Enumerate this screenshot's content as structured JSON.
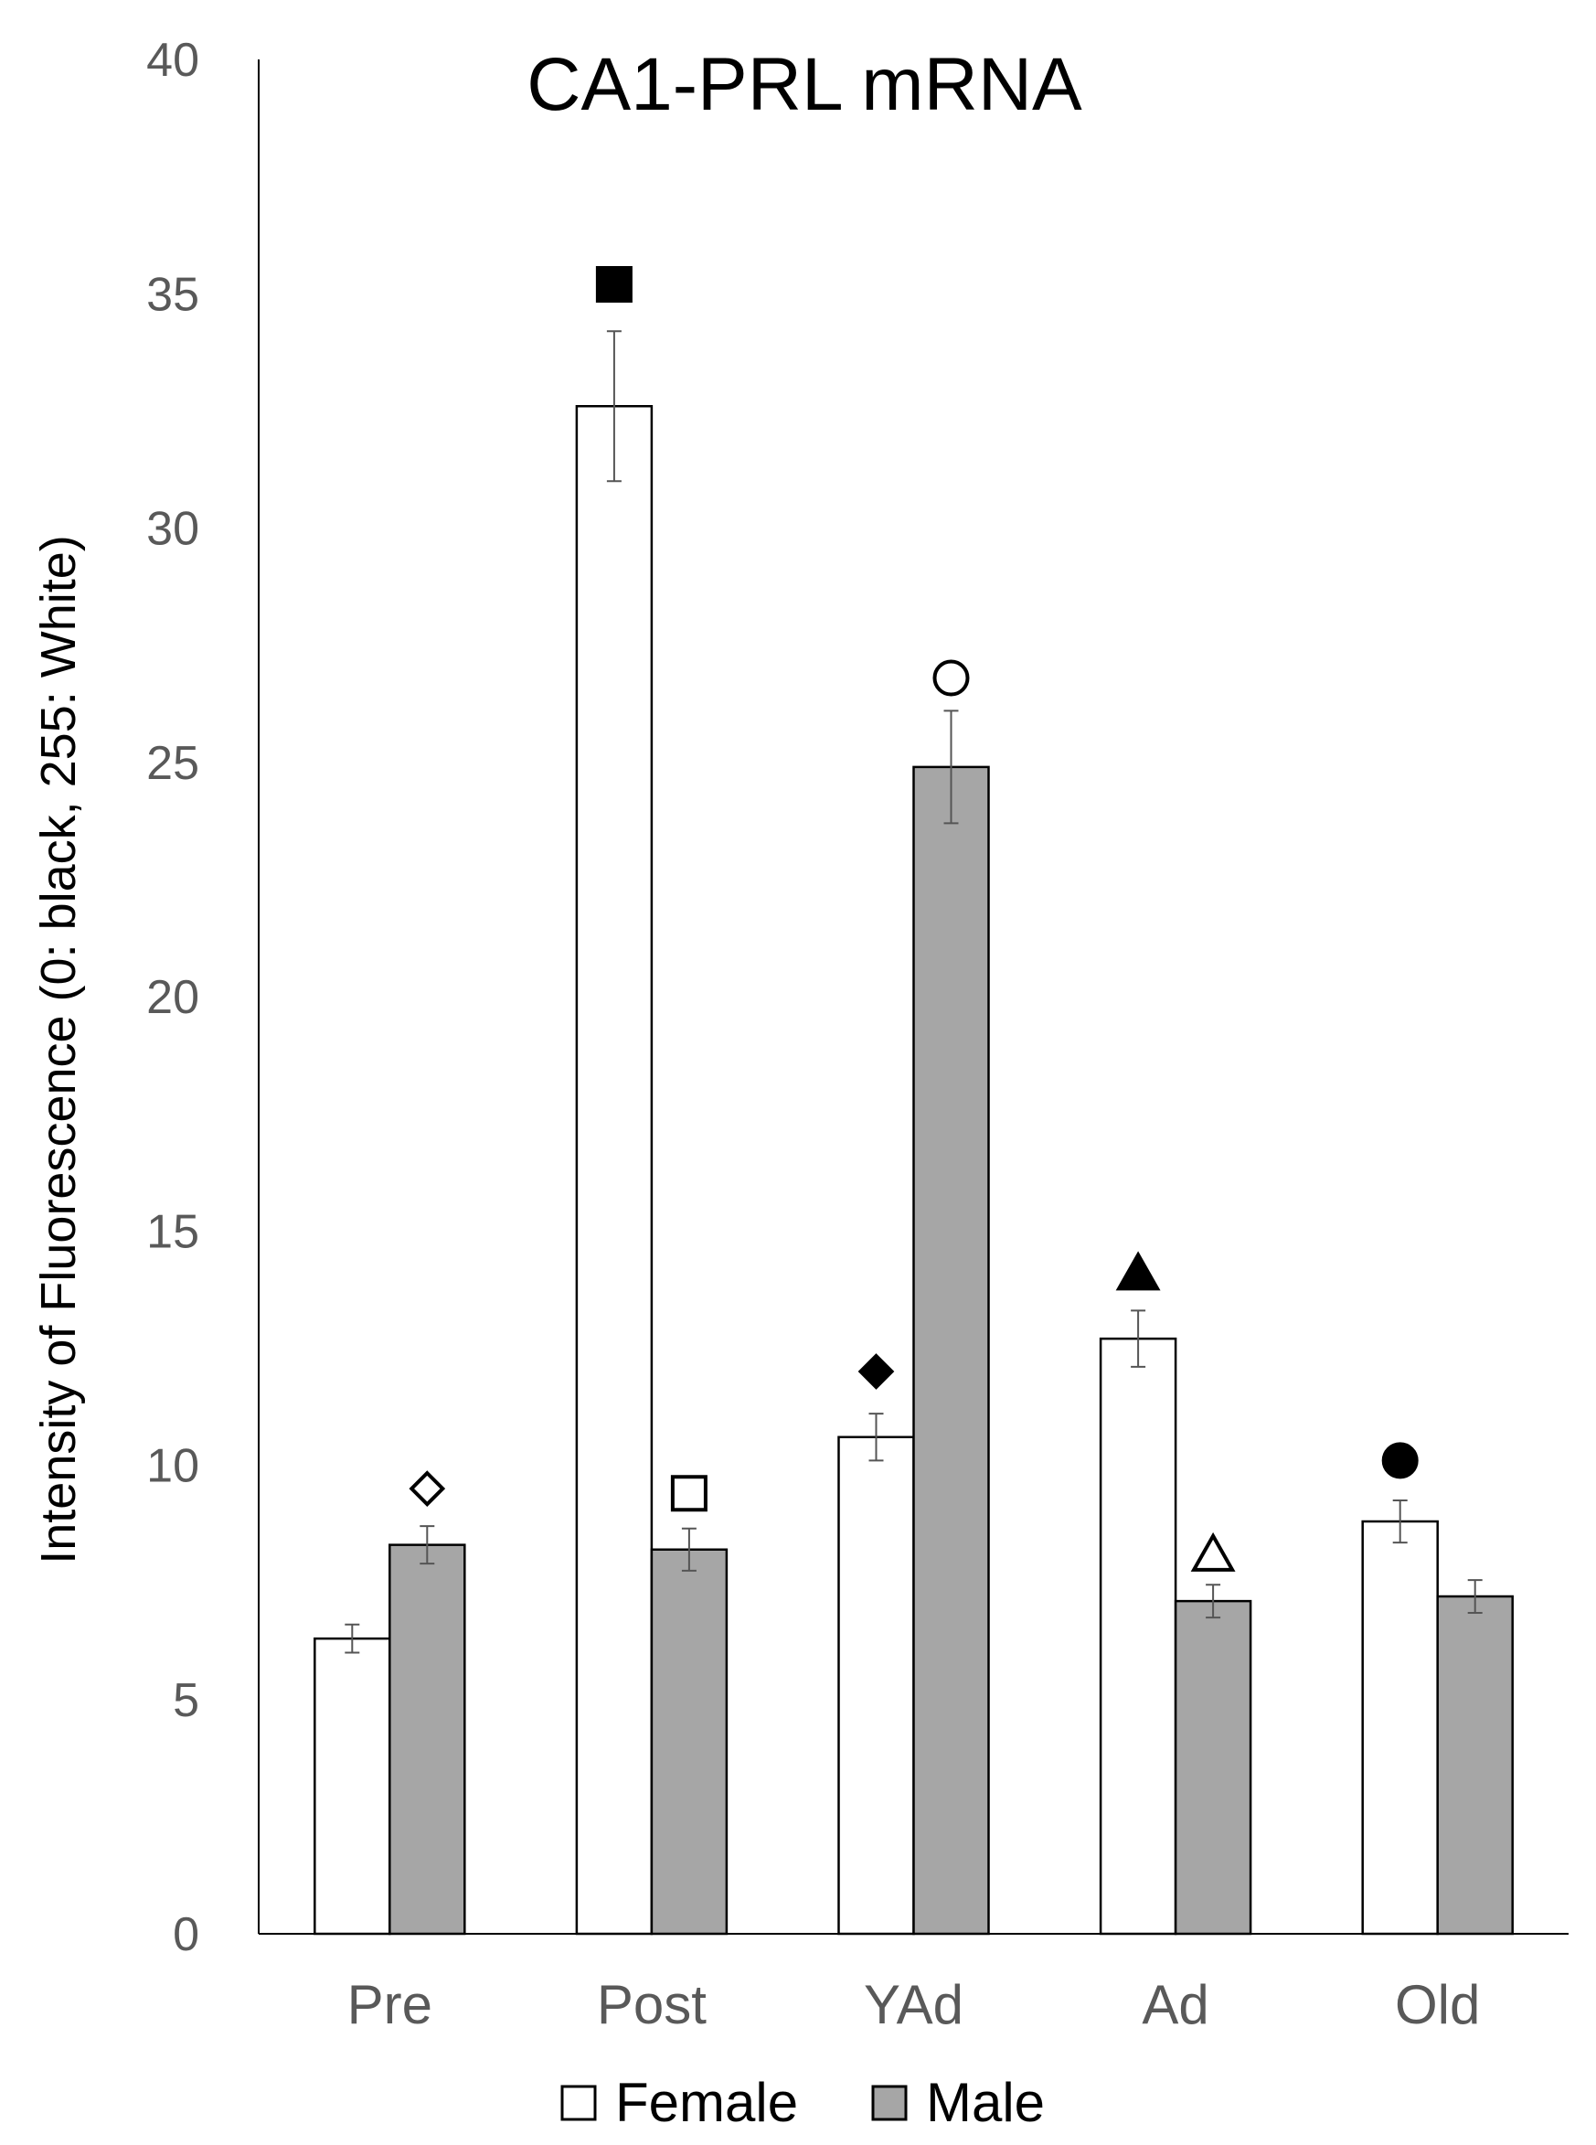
{
  "chart_data": {
    "type": "bar",
    "title": "CA1-PRL mRNA",
    "xlabel": "",
    "ylabel": "Intensity of Fluorescence (0: black, 255: White)",
    "ylim": [
      0,
      40
    ],
    "yticks": [
      0,
      5,
      10,
      15,
      20,
      25,
      30,
      35,
      40
    ],
    "categories": [
      "Pre",
      "Post",
      "YAd",
      "Ad",
      "Old"
    ],
    "series": [
      {
        "name": "Female",
        "color": "#ffffff",
        "values": [
          6.3,
          32.6,
          10.6,
          12.7,
          8.8
        ],
        "errors": [
          0.3,
          1.6,
          0.5,
          0.6,
          0.45
        ]
      },
      {
        "name": "Male",
        "color": "#a6a6a6",
        "values": [
          8.3,
          8.2,
          24.9,
          7.1,
          7.2
        ],
        "errors": [
          0.4,
          0.45,
          1.2,
          0.35,
          0.35
        ]
      }
    ],
    "grid": false,
    "legend_position": "bottom",
    "markers": [
      {
        "category": "Pre",
        "series": "Male",
        "shape": "diamond",
        "filled": false,
        "y": 9.5
      },
      {
        "category": "Post",
        "series": "Female",
        "shape": "square",
        "filled": true,
        "y": 35.2
      },
      {
        "category": "Post",
        "series": "Male",
        "shape": "square",
        "filled": false,
        "y": 9.4
      },
      {
        "category": "YAd",
        "series": "Female",
        "shape": "diamond",
        "filled": true,
        "y": 12.0
      },
      {
        "category": "YAd",
        "series": "Male",
        "shape": "circle",
        "filled": false,
        "y": 26.8
      },
      {
        "category": "Ad",
        "series": "Female",
        "shape": "triangle",
        "filled": true,
        "y": 14.1
      },
      {
        "category": "Ad",
        "series": "Male",
        "shape": "triangle",
        "filled": false,
        "y": 8.1
      },
      {
        "category": "Old",
        "series": "Female",
        "shape": "circle",
        "filled": true,
        "y": 10.1
      }
    ]
  }
}
